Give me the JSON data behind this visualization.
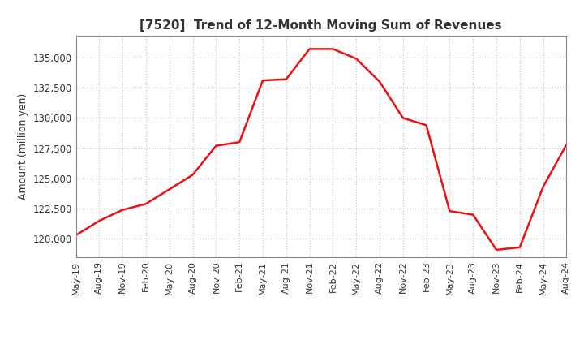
{
  "title": "[7520]  Trend of 12-Month Moving Sum of Revenues",
  "ylabel": "Amount (million yen)",
  "background_color": "#ffffff",
  "plot_bg_color": "#ffffff",
  "grid_color": "#c8c8c8",
  "line_color": "#ee1111",
  "ylim": [
    118500,
    136800
  ],
  "yticks": [
    120000,
    122500,
    125000,
    127500,
    130000,
    132500,
    135000
  ],
  "values": [
    120300,
    121500,
    122400,
    122900,
    124100,
    125300,
    127700,
    128000,
    133100,
    133200,
    135700,
    135700,
    134900,
    133000,
    130000,
    129400,
    122300,
    122000,
    119100,
    119300,
    124300,
    127800
  ],
  "xtick_labels": [
    "May-19",
    "Aug-19",
    "Nov-19",
    "Feb-20",
    "May-20",
    "Aug-20",
    "Nov-20",
    "Feb-21",
    "May-21",
    "Aug-21",
    "Nov-21",
    "Feb-22",
    "May-22",
    "Aug-22",
    "Nov-22",
    "Feb-23",
    "May-23",
    "Aug-23",
    "Nov-23",
    "Feb-24",
    "May-24",
    "Aug-24"
  ]
}
